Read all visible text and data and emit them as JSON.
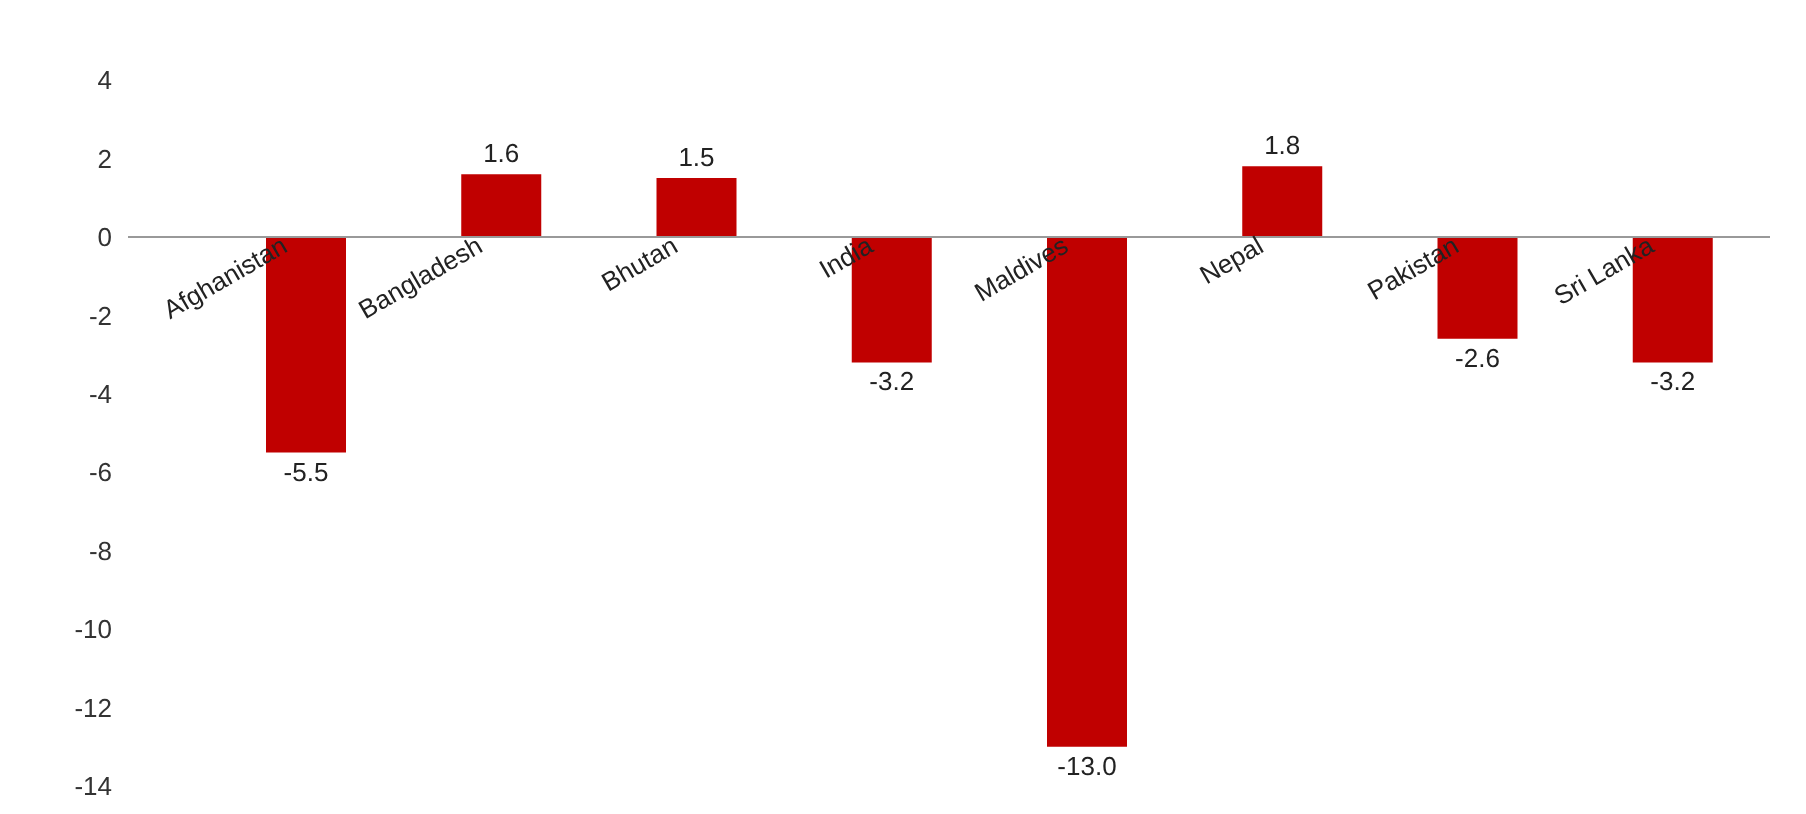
{
  "chart_data": {
    "type": "bar",
    "categories": [
      "Afghanistan",
      "Bangladesh",
      "Bhutan",
      "India",
      "Maldives",
      "Nepal",
      "Pakistan",
      "Sri Lanka"
    ],
    "values": [
      -5.5,
      1.6,
      1.5,
      -3.2,
      -13.0,
      1.8,
      -2.6,
      -3.2
    ],
    "value_labels": [
      "-5.5",
      "1.6",
      "1.5",
      "-3.2",
      "-13.0",
      "1.8",
      "-2.6",
      "-3.2"
    ],
    "color": "#c00000",
    "ylim": [
      -14,
      4
    ],
    "yticks": [
      -14,
      -12,
      -10,
      -8,
      -6,
      -4,
      -2,
      0,
      2,
      4
    ],
    "grid": false,
    "legend": false
  }
}
